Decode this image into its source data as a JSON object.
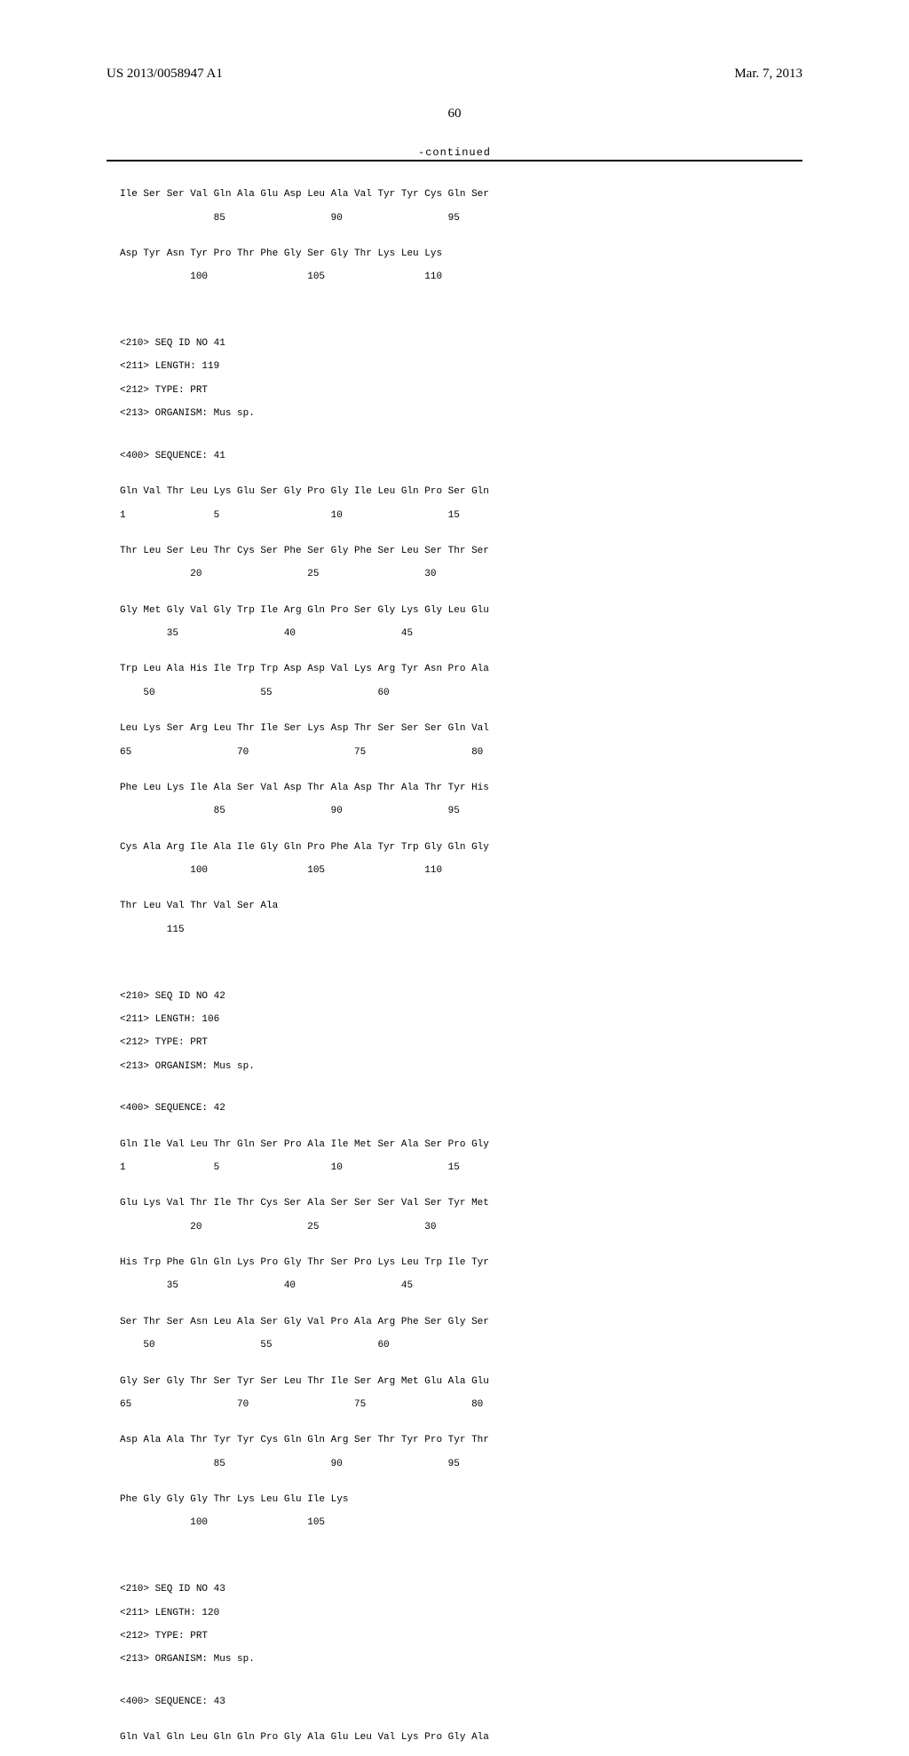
{
  "header": {
    "pub_number": "US 2013/0058947 A1",
    "pub_date": "Mar. 7, 2013",
    "page_number": "60"
  },
  "continued_label": "-continued",
  "sequences": [
    {
      "lines": [
        "Ile Ser Ser Val Gln Ala Glu Asp Leu Ala Val Tyr Tyr Cys Gln Ser",
        "                85                  90                  95"
      ]
    },
    {
      "lines": [
        "Asp Tyr Asn Tyr Pro Thr Phe Gly Ser Gly Thr Lys Leu Lys",
        "            100                 105                 110"
      ]
    }
  ],
  "seq41_header": [
    "<210> SEQ ID NO 41",
    "<211> LENGTH: 119",
    "<212> TYPE: PRT",
    "<213> ORGANISM: Mus sp."
  ],
  "seq41_sequence_label": "<400> SEQUENCE: 41",
  "seq41_lines": [
    [
      "Gln Val Thr Leu Lys Glu Ser Gly Pro Gly Ile Leu Gln Pro Ser Gln",
      "1               5                   10                  15"
    ],
    [
      "Thr Leu Ser Leu Thr Cys Ser Phe Ser Gly Phe Ser Leu Ser Thr Ser",
      "            20                  25                  30"
    ],
    [
      "Gly Met Gly Val Gly Trp Ile Arg Gln Pro Ser Gly Lys Gly Leu Glu",
      "        35                  40                  45"
    ],
    [
      "Trp Leu Ala His Ile Trp Trp Asp Asp Val Lys Arg Tyr Asn Pro Ala",
      "    50                  55                  60"
    ],
    [
      "Leu Lys Ser Arg Leu Thr Ile Ser Lys Asp Thr Ser Ser Ser Gln Val",
      "65                  70                  75                  80"
    ],
    [
      "Phe Leu Lys Ile Ala Ser Val Asp Thr Ala Asp Thr Ala Thr Tyr His",
      "                85                  90                  95"
    ],
    [
      "Cys Ala Arg Ile Ala Ile Gly Gln Pro Phe Ala Tyr Trp Gly Gln Gly",
      "            100                 105                 110"
    ],
    [
      "Thr Leu Val Thr Val Ser Ala",
      "        115"
    ]
  ],
  "seq42_header": [
    "<210> SEQ ID NO 42",
    "<211> LENGTH: 106",
    "<212> TYPE: PRT",
    "<213> ORGANISM: Mus sp."
  ],
  "seq42_sequence_label": "<400> SEQUENCE: 42",
  "seq42_lines": [
    [
      "Gln Ile Val Leu Thr Gln Ser Pro Ala Ile Met Ser Ala Ser Pro Gly",
      "1               5                   10                  15"
    ],
    [
      "Glu Lys Val Thr Ile Thr Cys Ser Ala Ser Ser Ser Val Ser Tyr Met",
      "            20                  25                  30"
    ],
    [
      "His Trp Phe Gln Gln Lys Pro Gly Thr Ser Pro Lys Leu Trp Ile Tyr",
      "        35                  40                  45"
    ],
    [
      "Ser Thr Ser Asn Leu Ala Ser Gly Val Pro Ala Arg Phe Ser Gly Ser",
      "    50                  55                  60"
    ],
    [
      "Gly Ser Gly Thr Ser Tyr Ser Leu Thr Ile Ser Arg Met Glu Ala Glu",
      "65                  70                  75                  80"
    ],
    [
      "Asp Ala Ala Thr Tyr Tyr Cys Gln Gln Arg Ser Thr Tyr Pro Tyr Thr",
      "                85                  90                  95"
    ],
    [
      "Phe Gly Gly Gly Thr Lys Leu Glu Ile Lys",
      "            100                 105"
    ]
  ],
  "seq43_header": [
    "<210> SEQ ID NO 43",
    "<211> LENGTH: 120",
    "<212> TYPE: PRT",
    "<213> ORGANISM: Mus sp."
  ],
  "seq43_sequence_label": "<400> SEQUENCE: 43",
  "seq43_lines": [
    [
      "Gln Val Gln Leu Gln Gln Pro Gly Ala Glu Leu Val Lys Pro Gly Ala",
      ""
    ]
  ]
}
